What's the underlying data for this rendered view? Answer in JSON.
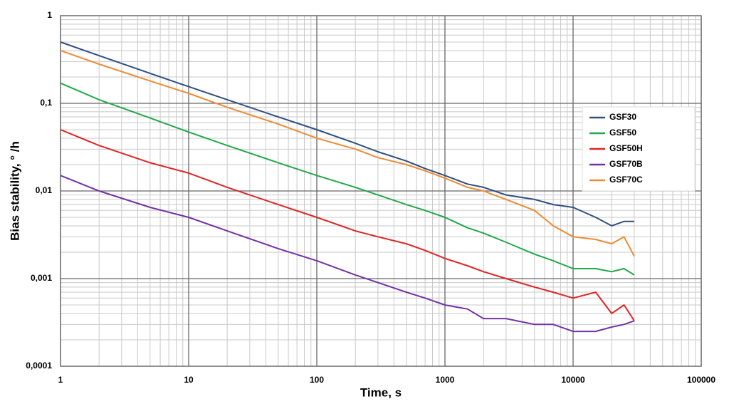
{
  "chart_data": {
    "type": "line",
    "xlabel": "Time, s",
    "ylabel": "Bias stability, ° /h",
    "log_x": true,
    "log_y": true,
    "grid": true,
    "minor_grid": true,
    "legend": "upper right",
    "x": [
      1,
      2,
      5,
      10,
      20,
      50,
      100,
      200,
      300,
      500,
      700,
      1000,
      1500,
      2000,
      3000,
      5000,
      7000,
      10000,
      15000,
      20000,
      25000,
      30000
    ],
    "series": [
      {
        "name": "GSF30",
        "color": "#2f4f80",
        "values": [
          0.5,
          0.35,
          0.22,
          0.155,
          0.11,
          0.07,
          0.05,
          0.035,
          0.028,
          0.022,
          0.018,
          0.015,
          0.012,
          0.011,
          0.009,
          0.008,
          0.007,
          0.0065,
          0.005,
          0.004,
          0.0045,
          0.0045
        ]
      },
      {
        "name": "GSF50",
        "color": "#22a84a",
        "values": [
          0.17,
          0.11,
          0.068,
          0.047,
          0.033,
          0.021,
          0.015,
          0.011,
          0.009,
          0.007,
          0.006,
          0.005,
          0.0038,
          0.0033,
          0.0026,
          0.0019,
          0.0016,
          0.0013,
          0.0013,
          0.0012,
          0.0013,
          0.0011
        ]
      },
      {
        "name": "GSF50H",
        "color": "#e02424",
        "values": [
          0.05,
          0.033,
          0.021,
          0.016,
          0.011,
          0.007,
          0.005,
          0.0035,
          0.003,
          0.0025,
          0.0021,
          0.0017,
          0.0014,
          0.0012,
          0.001,
          0.0008,
          0.0007,
          0.0006,
          0.0007,
          0.0004,
          0.0005,
          0.00033
        ]
      },
      {
        "name": "GSF70B",
        "color": "#7232a6",
        "values": [
          0.015,
          0.01,
          0.0065,
          0.005,
          0.0035,
          0.0022,
          0.0016,
          0.0011,
          0.0009,
          0.0007,
          0.0006,
          0.0005,
          0.00045,
          0.00035,
          0.00035,
          0.0003,
          0.0003,
          0.00025,
          0.00025,
          0.00028,
          0.0003,
          0.00033
        ]
      },
      {
        "name": "GSF70C",
        "color": "#f08a32",
        "values": [
          0.4,
          0.28,
          0.18,
          0.13,
          0.09,
          0.058,
          0.04,
          0.03,
          0.024,
          0.02,
          0.017,
          0.014,
          0.011,
          0.01,
          0.008,
          0.006,
          0.004,
          0.003,
          0.0028,
          0.0025,
          0.003,
          0.0018
        ]
      }
    ],
    "xlim": [
      1,
      100000
    ],
    "xticks": [
      1,
      10,
      100,
      1000,
      10000,
      100000
    ],
    "ylim": [
      0.0001,
      1
    ],
    "yticks": [
      {
        "value": 0.0001,
        "label": "0,0001"
      },
      {
        "value": 0.001,
        "label": "0,001"
      },
      {
        "value": 0.01,
        "label": "0,01"
      },
      {
        "value": 0.1,
        "label": "0,1"
      },
      1
    ]
  }
}
